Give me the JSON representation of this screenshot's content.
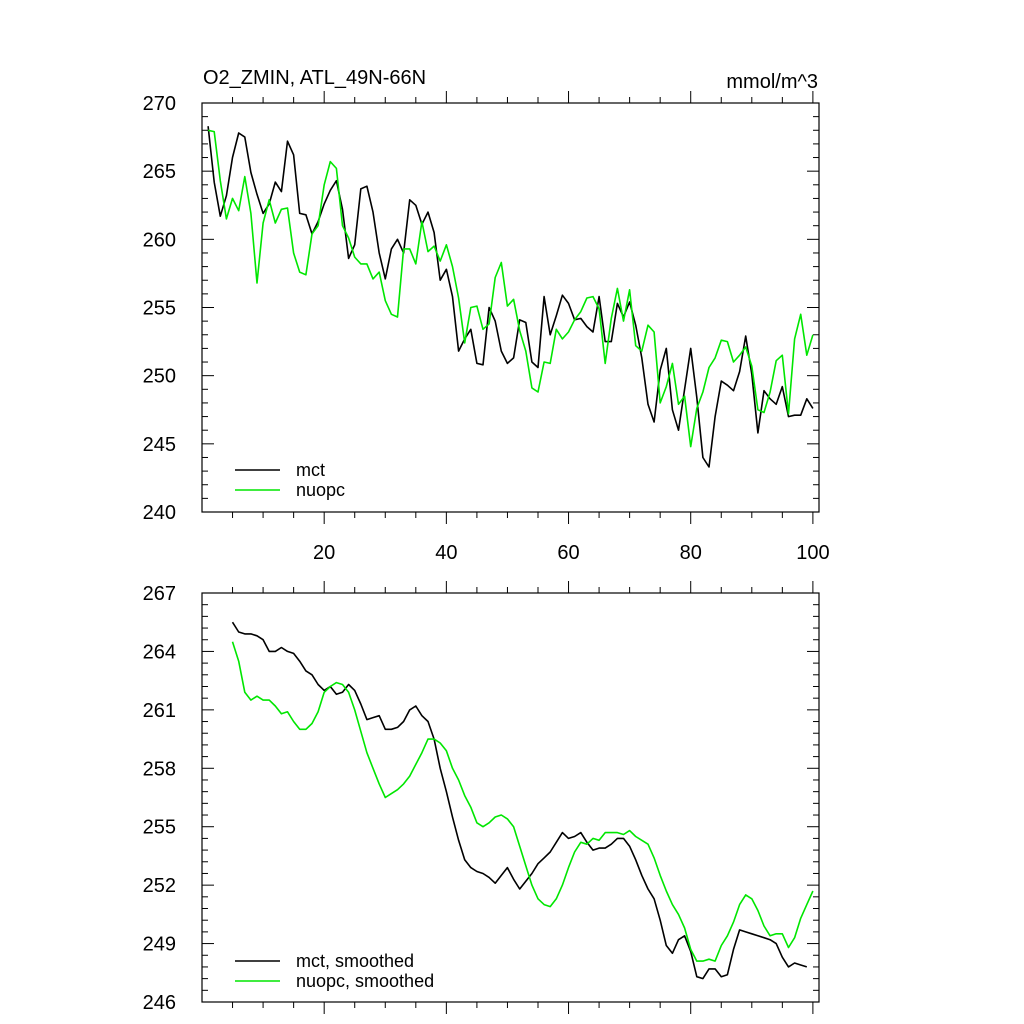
{
  "colors": {
    "mct": "#000000",
    "nuopc": "#00e600"
  },
  "chart_data": [
    {
      "type": "line",
      "title": "O2_ZMIN, ATL_49N-66N",
      "units": "mmol/m^3",
      "xlim": [
        0,
        101
      ],
      "ylim": [
        240,
        270
      ],
      "xticks": [
        20,
        40,
        60,
        80,
        100
      ],
      "yticks": [
        240,
        245,
        250,
        255,
        260,
        265,
        270
      ],
      "show_x_tick_labels": true,
      "legend_position": "bottom-left",
      "series": [
        {
          "name": "mct",
          "color": "#000000",
          "values": [
            268.3,
            264.2,
            261.7,
            263.2,
            266.0,
            267.8,
            267.5,
            264.9,
            263.3,
            261.9,
            262.6,
            264.2,
            263.5,
            267.2,
            266.2,
            261.9,
            261.8,
            260.4,
            261.3,
            262.6,
            263.6,
            264.3,
            262.2,
            258.6,
            259.6,
            263.7,
            263.9,
            262.0,
            259.0,
            257.1,
            259.3,
            260.0,
            259.0,
            262.9,
            262.5,
            261.1,
            262.0,
            260.5,
            257.0,
            257.8,
            255.8,
            251.8,
            252.7,
            253.4,
            250.9,
            250.8,
            255.0,
            254.0,
            251.8,
            250.9,
            251.3,
            254.1,
            253.9,
            251.0,
            250.6,
            255.8,
            253.0,
            254.4,
            255.9,
            255.3,
            254.1,
            254.2,
            253.6,
            253.2,
            255.8,
            252.5,
            252.5,
            255.3,
            254.3,
            255.4,
            253.7,
            251.3,
            247.9,
            246.6,
            250.4,
            252.0,
            247.5,
            246.0,
            249.0,
            252.0,
            248.4,
            244.0,
            243.3,
            247.0,
            249.6,
            249.3,
            248.9,
            250.3,
            252.9,
            250.1,
            245.8,
            248.9,
            248.3,
            247.9,
            249.2,
            247.0,
            247.1,
            247.1,
            248.3,
            247.6
          ]
        },
        {
          "name": "nuopc",
          "color": "#00e600",
          "values": [
            268.0,
            267.9,
            264.3,
            261.5,
            263.0,
            262.1,
            264.6,
            261.9,
            256.8,
            261.2,
            262.9,
            261.2,
            262.2,
            262.3,
            259.0,
            257.6,
            257.4,
            260.4,
            261.0,
            264.0,
            265.7,
            265.2,
            261.0,
            260.1,
            258.7,
            258.2,
            258.2,
            257.1,
            257.6,
            255.5,
            254.5,
            254.3,
            259.3,
            259.3,
            258.2,
            261.3,
            259.1,
            259.5,
            258.4,
            259.6,
            258.0,
            255.7,
            252.4,
            255.0,
            255.1,
            253.4,
            253.8,
            257.2,
            258.3,
            255.1,
            255.6,
            253.3,
            251.8,
            249.1,
            248.8,
            251.0,
            250.9,
            253.4,
            252.7,
            253.2,
            254.1,
            254.7,
            255.7,
            255.8,
            254.9,
            250.9,
            254.2,
            256.4,
            254.0,
            256.3,
            252.2,
            251.8,
            253.7,
            253.2,
            248.0,
            249.2,
            250.9,
            247.9,
            248.5,
            244.8,
            247.6,
            248.8,
            250.6,
            251.3,
            252.6,
            252.5,
            251.0,
            251.5,
            252.1,
            250.7,
            247.5,
            247.3,
            248.8,
            251.1,
            251.5,
            247.2,
            252.7,
            254.5,
            251.5,
            253.0
          ]
        }
      ]
    },
    {
      "type": "line",
      "xlim": [
        0,
        101
      ],
      "ylim": [
        246,
        267
      ],
      "xticks": [
        20,
        40,
        60,
        80,
        100
      ],
      "yticks": [
        246,
        249,
        252,
        255,
        258,
        261,
        264,
        267
      ],
      "show_x_tick_labels": false,
      "legend_position": "bottom-left",
      "series": [
        {
          "name": "mct, smoothed",
          "color": "#000000",
          "x_start": 5,
          "values": [
            265.5,
            265.0,
            264.9,
            264.9,
            264.8,
            264.6,
            264.0,
            264.0,
            264.2,
            264.0,
            263.9,
            263.5,
            263.0,
            262.8,
            262.3,
            262.0,
            262.2,
            261.8,
            261.9,
            262.3,
            262.0,
            261.3,
            260.5,
            260.6,
            260.7,
            260.0,
            260.0,
            260.1,
            260.4,
            261.0,
            261.2,
            260.7,
            260.4,
            259.5,
            258.0,
            256.8,
            255.5,
            254.3,
            253.3,
            252.9,
            252.7,
            252.6,
            252.4,
            252.1,
            252.5,
            252.9,
            252.3,
            251.8,
            252.2,
            252.6,
            253.1,
            253.4,
            253.7,
            254.2,
            254.7,
            254.4,
            254.5,
            254.7,
            254.2,
            253.8,
            253.9,
            253.9,
            254.1,
            254.4,
            254.4,
            254.0,
            253.3,
            252.5,
            251.8,
            251.3,
            250.2,
            248.9,
            248.5,
            249.2,
            249.4,
            248.6,
            247.3,
            247.2,
            247.7,
            247.7,
            247.3,
            247.4,
            248.7,
            249.7,
            249.6,
            249.5,
            249.4,
            249.3,
            249.2,
            249.0,
            248.3,
            247.8,
            248.0,
            247.9,
            247.8
          ]
        },
        {
          "name": "nuopc, smoothed",
          "color": "#00e600",
          "x_start": 5,
          "values": [
            264.5,
            263.5,
            261.9,
            261.5,
            261.7,
            261.5,
            261.5,
            261.2,
            260.8,
            260.9,
            260.4,
            260.0,
            260.0,
            260.3,
            260.9,
            261.9,
            262.2,
            262.4,
            262.3,
            261.9,
            261.0,
            259.9,
            258.8,
            258.0,
            257.2,
            256.5,
            256.7,
            256.9,
            257.2,
            257.6,
            258.2,
            258.8,
            259.5,
            259.5,
            259.3,
            258.9,
            258.0,
            257.4,
            256.6,
            256.0,
            255.2,
            255.0,
            255.2,
            255.5,
            255.6,
            255.4,
            255.0,
            254.0,
            253.0,
            252.0,
            251.3,
            251.0,
            250.9,
            251.3,
            252.0,
            252.9,
            253.7,
            254.2,
            254.1,
            254.4,
            254.3,
            254.7,
            254.7,
            254.7,
            254.6,
            254.8,
            254.5,
            254.3,
            254.1,
            253.4,
            252.5,
            251.7,
            251.0,
            250.5,
            249.8,
            248.7,
            248.1,
            248.1,
            248.2,
            248.1,
            248.9,
            249.4,
            250.1,
            251.0,
            251.5,
            251.3,
            250.7,
            249.9,
            249.4,
            249.5,
            249.5,
            248.8,
            249.3,
            250.3,
            251.0,
            251.7
          ]
        }
      ]
    }
  ]
}
